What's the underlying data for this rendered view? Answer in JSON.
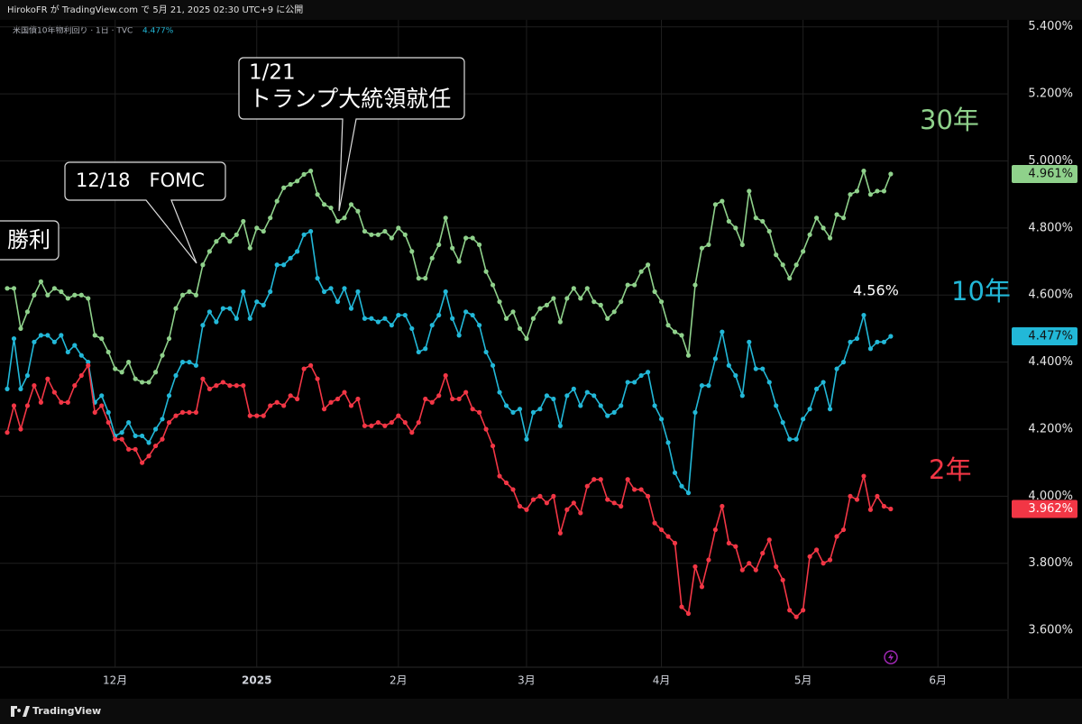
{
  "page": {
    "header_text": "HirokoFR が TradingView.com で 5月 21, 2025 02:30 UTC+9 に公開",
    "symbol": "米国債10年物利回り · 1日 · TVC",
    "symbol_value": "4.477%",
    "brand": "TradingView"
  },
  "chart_data": {
    "type": "line",
    "grid": true,
    "categories": [
      null,
      null,
      null,
      null,
      null,
      null,
      null,
      null,
      null,
      null,
      null,
      null,
      null,
      null,
      null,
      null,
      "12月",
      null,
      null,
      null,
      null,
      null,
      null,
      null,
      null,
      null,
      null,
      null,
      null,
      null,
      null,
      null,
      null,
      null,
      null,
      null,
      null,
      "2025",
      null,
      null,
      null,
      null,
      null,
      null,
      null,
      null,
      null,
      null,
      null,
      null,
      null,
      null,
      null,
      null,
      null,
      null,
      null,
      null,
      "2月",
      null,
      null,
      null,
      null,
      null,
      null,
      null,
      null,
      null,
      null,
      null,
      null,
      null,
      null,
      null,
      null,
      null,
      null,
      "3月",
      null,
      null,
      null,
      null,
      null,
      null,
      null,
      null,
      null,
      null,
      null,
      null,
      null,
      null,
      null,
      null,
      null,
      null,
      null,
      "4月",
      null,
      null,
      null,
      null,
      null,
      null,
      null,
      null,
      null,
      null,
      null,
      null,
      null,
      null,
      null,
      null,
      null,
      null,
      null,
      null,
      "5月",
      null,
      null,
      null,
      null,
      null,
      null,
      null,
      null,
      null,
      null,
      null,
      null,
      null,
      null,
      null,
      null,
      null,
      null,
      null,
      "6月"
    ],
    "ylim": [
      3.49,
      5.48
    ],
    "yticks": [
      {
        "value": 3.6,
        "label": "3.600%"
      },
      {
        "value": 3.8,
        "label": "3.800%"
      },
      {
        "value": 4.0,
        "label": "4.000%"
      },
      {
        "value": 4.2,
        "label": "4.200%"
      },
      {
        "value": 4.4,
        "label": "4.400%"
      },
      {
        "value": 4.6,
        "label": "4.600%"
      },
      {
        "value": 4.8,
        "label": "4.800%"
      },
      {
        "value": 5.0,
        "label": "5.000%"
      },
      {
        "value": 5.2,
        "label": "5.200%"
      },
      {
        "value": 5.4,
        "label": "5.400%"
      }
    ],
    "series": [
      {
        "name": "30年",
        "color": "#8fd18b",
        "last_value_label": "4.961%",
        "values": [
          4.62,
          4.62,
          4.5,
          4.55,
          4.6,
          4.64,
          4.6,
          4.62,
          4.61,
          4.59,
          4.6,
          4.6,
          4.59,
          4.48,
          4.47,
          4.43,
          4.38,
          4.37,
          4.4,
          4.35,
          4.34,
          4.34,
          4.37,
          4.42,
          4.47,
          4.56,
          4.6,
          4.61,
          4.6,
          4.69,
          4.73,
          4.76,
          4.78,
          4.76,
          4.78,
          4.82,
          4.74,
          4.8,
          4.79,
          4.83,
          4.88,
          4.92,
          4.93,
          4.94,
          4.96,
          4.97,
          4.9,
          4.87,
          4.86,
          4.82,
          4.83,
          4.87,
          4.85,
          4.79,
          4.78,
          4.78,
          4.79,
          4.77,
          4.8,
          4.78,
          4.73,
          4.65,
          4.65,
          4.71,
          4.75,
          4.83,
          4.74,
          4.7,
          4.77,
          4.77,
          4.75,
          4.67,
          4.63,
          4.58,
          4.53,
          4.55,
          4.5,
          4.47,
          4.53,
          4.56,
          4.57,
          4.59,
          4.52,
          4.59,
          4.62,
          4.59,
          4.62,
          4.58,
          4.57,
          4.53,
          4.55,
          4.58,
          4.63,
          4.63,
          4.67,
          4.69,
          4.61,
          4.58,
          4.51,
          4.49,
          4.48,
          4.42,
          4.63,
          4.74,
          4.75,
          4.87,
          4.88,
          4.82,
          4.8,
          4.75,
          4.91,
          4.83,
          4.82,
          4.79,
          4.72,
          4.69,
          4.65,
          4.69,
          4.73,
          4.78,
          4.83,
          4.8,
          4.77,
          4.84,
          4.83,
          4.9,
          4.91,
          4.97,
          4.9,
          4.91,
          4.91,
          4.961,
          null,
          null,
          null,
          null,
          null,
          null,
          null
        ]
      },
      {
        "name": "10年",
        "color": "#22b8d8",
        "last_value_label": "4.477%",
        "values": [
          4.32,
          4.47,
          4.32,
          4.36,
          4.46,
          4.48,
          4.48,
          4.46,
          4.48,
          4.43,
          4.45,
          4.42,
          4.4,
          4.28,
          4.3,
          4.25,
          4.18,
          4.19,
          4.22,
          4.18,
          4.18,
          4.16,
          4.2,
          4.23,
          4.3,
          4.36,
          4.4,
          4.4,
          4.39,
          4.51,
          4.55,
          4.52,
          4.56,
          4.56,
          4.53,
          4.61,
          4.53,
          4.58,
          4.57,
          4.61,
          4.69,
          4.69,
          4.71,
          4.73,
          4.78,
          4.79,
          4.65,
          4.61,
          4.62,
          4.58,
          4.62,
          4.56,
          4.61,
          4.53,
          4.53,
          4.52,
          4.53,
          4.51,
          4.54,
          4.54,
          4.5,
          4.43,
          4.44,
          4.51,
          4.54,
          4.61,
          4.53,
          4.48,
          4.55,
          4.54,
          4.51,
          4.43,
          4.39,
          4.31,
          4.27,
          4.25,
          4.26,
          4.17,
          4.25,
          4.26,
          4.3,
          4.29,
          4.21,
          4.3,
          4.32,
          4.27,
          4.31,
          4.3,
          4.27,
          4.24,
          4.25,
          4.27,
          4.34,
          4.34,
          4.36,
          4.37,
          4.27,
          4.23,
          4.16,
          4.07,
          4.03,
          4.01,
          4.25,
          4.33,
          4.33,
          4.41,
          4.49,
          4.39,
          4.36,
          4.3,
          4.46,
          4.38,
          4.38,
          4.34,
          4.27,
          4.22,
          4.17,
          4.17,
          4.23,
          4.26,
          4.32,
          4.34,
          4.26,
          4.38,
          4.4,
          4.46,
          4.47,
          4.54,
          4.44,
          4.46,
          4.46,
          4.477,
          null,
          null,
          null,
          null,
          null,
          null,
          null
        ]
      },
      {
        "name": "2年",
        "color": "#f23645",
        "last_value_label": "3.962%",
        "values": [
          4.19,
          4.27,
          4.2,
          4.27,
          4.33,
          4.28,
          4.35,
          4.31,
          4.28,
          4.28,
          4.33,
          4.36,
          4.39,
          4.25,
          4.27,
          4.22,
          4.17,
          4.17,
          4.14,
          4.14,
          4.1,
          4.12,
          4.15,
          4.17,
          4.22,
          4.24,
          4.25,
          4.25,
          4.25,
          4.35,
          4.32,
          4.33,
          4.34,
          4.33,
          4.33,
          4.33,
          4.24,
          4.24,
          4.24,
          4.27,
          4.28,
          4.27,
          4.3,
          4.29,
          4.38,
          4.39,
          4.35,
          4.26,
          4.28,
          4.29,
          4.31,
          4.27,
          4.29,
          4.21,
          4.21,
          4.22,
          4.21,
          4.22,
          4.24,
          4.22,
          4.19,
          4.22,
          4.29,
          4.28,
          4.3,
          4.36,
          4.29,
          4.29,
          4.31,
          4.26,
          4.25,
          4.2,
          4.15,
          4.06,
          4.04,
          4.02,
          3.97,
          3.96,
          3.99,
          4.0,
          3.98,
          4.0,
          3.89,
          3.96,
          3.98,
          3.95,
          4.03,
          4.05,
          4.05,
          3.99,
          3.98,
          3.97,
          4.05,
          4.02,
          4.02,
          4.0,
          3.92,
          3.9,
          3.88,
          3.86,
          3.67,
          3.65,
          3.79,
          3.73,
          3.81,
          3.9,
          3.97,
          3.86,
          3.85,
          3.78,
          3.8,
          3.78,
          3.83,
          3.87,
          3.79,
          3.75,
          3.66,
          3.64,
          3.66,
          3.82,
          3.84,
          3.8,
          3.81,
          3.88,
          3.9,
          4.0,
          3.99,
          4.06,
          3.96,
          4.0,
          3.97,
          3.962,
          null,
          null,
          null,
          null,
          null,
          null,
          null
        ]
      }
    ],
    "annotations": [
      "勝利",
      "12/18　FOMC",
      "1/21",
      "トランプ大統領就任",
      "4.56%"
    ]
  }
}
